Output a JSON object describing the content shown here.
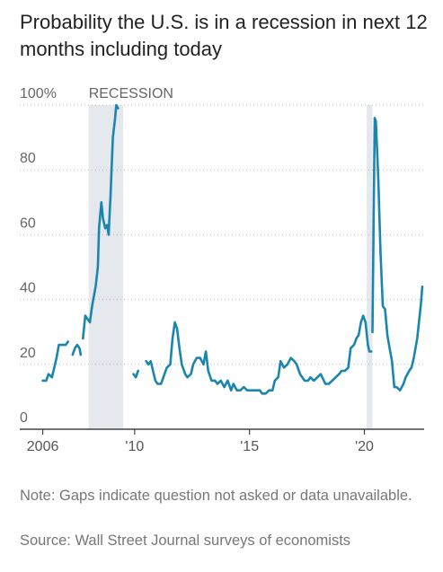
{
  "title": "Probability the U.S. is in a recession in next 12 months including today",
  "note": "Note: Gaps indicate question not asked or data unavailable.",
  "source": "Source: Wall Street Journal surveys of economists",
  "chart_data": {
    "type": "line",
    "title": "Probability the U.S. is in a recession in next 12 months including today",
    "xlabel": "",
    "ylabel": "",
    "xlim": [
      2005.0,
      2022.6
    ],
    "ylim": [
      0,
      100
    ],
    "grid": "horizontal dotted",
    "line_color": "#1a86b0",
    "shade_color": "#e5e9ee",
    "y_ticks": [
      {
        "value": 100,
        "label": "100%"
      },
      {
        "value": 80,
        "label": "80"
      },
      {
        "value": 60,
        "label": "60"
      },
      {
        "value": 40,
        "label": "40"
      },
      {
        "value": 20,
        "label": "20"
      },
      {
        "value": 0,
        "label": "0"
      }
    ],
    "x_ticks": [
      {
        "value": 2006.0,
        "label": "2006"
      },
      {
        "value": 2010.0,
        "label": "'10"
      },
      {
        "value": 2015.0,
        "label": "'15"
      },
      {
        "value": 2020.0,
        "label": "'20"
      }
    ],
    "recessions": [
      {
        "start": 2008.0,
        "end": 2009.5,
        "label": "RECESSION"
      },
      {
        "start": 2020.1,
        "end": 2020.35,
        "label": ""
      }
    ],
    "series": [
      {
        "segments": [
          [
            [
              2006.0,
              15
            ],
            [
              2006.15,
              15
            ],
            [
              2006.25,
              17
            ],
            [
              2006.4,
              16
            ],
            [
              2006.5,
              19
            ],
            [
              2006.6,
              22
            ],
            [
              2006.7,
              26
            ],
            [
              2006.85,
              26
            ],
            [
              2007.0,
              26
            ],
            [
              2007.1,
              27
            ]
          ],
          [
            [
              2007.3,
              23
            ],
            [
              2007.4,
              25
            ],
            [
              2007.5,
              26
            ],
            [
              2007.6,
              25
            ],
            [
              2007.65,
              23
            ]
          ],
          [
            [
              2007.75,
              28
            ],
            [
              2007.85,
              35
            ],
            [
              2007.95,
              34
            ],
            [
              2008.05,
              33
            ],
            [
              2008.15,
              38
            ],
            [
              2008.3,
              44
            ],
            [
              2008.4,
              50
            ],
            [
              2008.45,
              62
            ],
            [
              2008.55,
              70
            ],
            [
              2008.62,
              65
            ],
            [
              2008.72,
              62
            ],
            [
              2008.8,
              63
            ],
            [
              2008.87,
              60
            ],
            [
              2008.95,
              72
            ],
            [
              2009.05,
              90
            ],
            [
              2009.15,
              96
            ],
            [
              2009.2,
              100
            ],
            [
              2009.28,
              99
            ]
          ],
          [
            [
              2009.95,
              17
            ],
            [
              2010.05,
              16
            ],
            [
              2010.15,
              18
            ]
          ],
          [
            [
              2010.5,
              21
            ],
            [
              2010.6,
              20
            ],
            [
              2010.7,
              21
            ],
            [
              2010.8,
              18
            ],
            [
              2010.9,
              15
            ],
            [
              2011.0,
              14
            ],
            [
              2011.15,
              14
            ],
            [
              2011.3,
              17
            ],
            [
              2011.4,
              19
            ],
            [
              2011.55,
              20
            ],
            [
              2011.65,
              28
            ],
            [
              2011.75,
              33
            ],
            [
              2011.85,
              31
            ],
            [
              2011.95,
              25
            ],
            [
              2012.05,
              20
            ],
            [
              2012.2,
              17
            ],
            [
              2012.3,
              16
            ],
            [
              2012.45,
              17
            ],
            [
              2012.55,
              20
            ],
            [
              2012.7,
              22
            ],
            [
              2012.85,
              22
            ],
            [
              2013.0,
              20
            ],
            [
              2013.1,
              24
            ],
            [
              2013.2,
              18
            ],
            [
              2013.35,
              15
            ],
            [
              2013.5,
              15
            ],
            [
              2013.6,
              14
            ],
            [
              2013.75,
              15
            ],
            [
              2013.9,
              13
            ],
            [
              2014.05,
              15
            ],
            [
              2014.2,
              12
            ],
            [
              2014.3,
              14
            ],
            [
              2014.45,
              12
            ],
            [
              2014.6,
              12
            ],
            [
              2014.75,
              13
            ],
            [
              2014.9,
              12
            ],
            [
              2015.05,
              12
            ],
            [
              2015.2,
              12
            ],
            [
              2015.35,
              12
            ],
            [
              2015.45,
              12
            ],
            [
              2015.55,
              11
            ],
            [
              2015.7,
              11
            ],
            [
              2015.85,
              12
            ],
            [
              2016.0,
              12
            ],
            [
              2016.1,
              15
            ],
            [
              2016.25,
              16
            ],
            [
              2016.35,
              21
            ],
            [
              2016.5,
              19
            ],
            [
              2016.65,
              20
            ],
            [
              2016.8,
              22
            ],
            [
              2016.95,
              21
            ],
            [
              2017.05,
              20
            ],
            [
              2017.2,
              17
            ],
            [
              2017.4,
              15
            ],
            [
              2017.55,
              15
            ],
            [
              2017.65,
              16
            ],
            [
              2017.8,
              15
            ],
            [
              2017.95,
              16
            ],
            [
              2018.1,
              17
            ],
            [
              2018.3,
              14
            ],
            [
              2018.45,
              14
            ],
            [
              2018.6,
              15
            ],
            [
              2018.75,
              16
            ],
            [
              2018.9,
              17
            ],
            [
              2019.0,
              18
            ],
            [
              2019.15,
              18
            ],
            [
              2019.3,
              19
            ],
            [
              2019.4,
              25
            ],
            [
              2019.55,
              26
            ],
            [
              2019.65,
              28
            ],
            [
              2019.75,
              29
            ],
            [
              2019.85,
              33
            ],
            [
              2019.95,
              35
            ],
            [
              2020.05,
              33
            ],
            [
              2020.15,
              26
            ],
            [
              2020.22,
              24
            ],
            [
              2020.3,
              24
            ]
          ],
          [
            [
              2020.35,
              30
            ],
            [
              2020.45,
              96
            ],
            [
              2020.5,
              95
            ],
            [
              2020.6,
              78
            ],
            [
              2020.7,
              55
            ],
            [
              2020.8,
              38
            ],
            [
              2020.9,
              37
            ],
            [
              2021.0,
              29
            ],
            [
              2021.1,
              25
            ],
            [
              2021.2,
              21
            ],
            [
              2021.3,
              13
            ],
            [
              2021.4,
              13
            ],
            [
              2021.55,
              12
            ],
            [
              2021.7,
              14
            ],
            [
              2021.8,
              16
            ],
            [
              2021.95,
              18
            ],
            [
              2022.05,
              19
            ],
            [
              2022.15,
              22
            ],
            [
              2022.3,
              28
            ],
            [
              2022.45,
              38
            ],
            [
              2022.52,
              44
            ]
          ]
        ]
      }
    ]
  }
}
